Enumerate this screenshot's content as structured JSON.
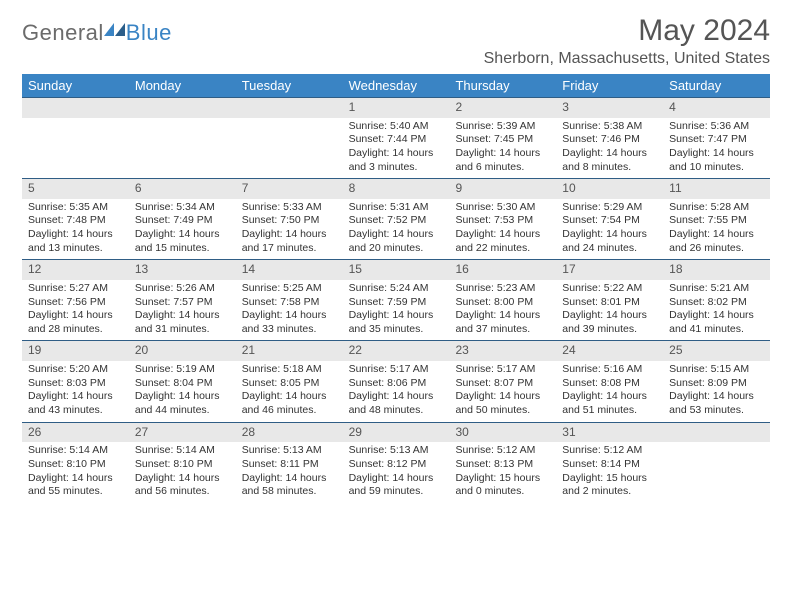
{
  "brand": {
    "name1": "General",
    "name2": "Blue",
    "brand_color": "#3a84c4",
    "gray": "#6b6b6b"
  },
  "title": "May 2024",
  "location": "Sherborn, Massachusetts, United States",
  "colors": {
    "header_bg": "#3a84c4",
    "header_text": "#ffffff",
    "daynum_bg": "#e8e8e8",
    "row_border": "#2f5d85",
    "body_text": "#333333"
  },
  "weekdays": [
    "Sunday",
    "Monday",
    "Tuesday",
    "Wednesday",
    "Thursday",
    "Friday",
    "Saturday"
  ],
  "weeks": [
    [
      {
        "day": "",
        "sunrise": "",
        "sunset": "",
        "daylight1": "",
        "daylight2": ""
      },
      {
        "day": "",
        "sunrise": "",
        "sunset": "",
        "daylight1": "",
        "daylight2": ""
      },
      {
        "day": "",
        "sunrise": "",
        "sunset": "",
        "daylight1": "",
        "daylight2": ""
      },
      {
        "day": "1",
        "sunrise": "Sunrise: 5:40 AM",
        "sunset": "Sunset: 7:44 PM",
        "daylight1": "Daylight: 14 hours",
        "daylight2": "and 3 minutes."
      },
      {
        "day": "2",
        "sunrise": "Sunrise: 5:39 AM",
        "sunset": "Sunset: 7:45 PM",
        "daylight1": "Daylight: 14 hours",
        "daylight2": "and 6 minutes."
      },
      {
        "day": "3",
        "sunrise": "Sunrise: 5:38 AM",
        "sunset": "Sunset: 7:46 PM",
        "daylight1": "Daylight: 14 hours",
        "daylight2": "and 8 minutes."
      },
      {
        "day": "4",
        "sunrise": "Sunrise: 5:36 AM",
        "sunset": "Sunset: 7:47 PM",
        "daylight1": "Daylight: 14 hours",
        "daylight2": "and 10 minutes."
      }
    ],
    [
      {
        "day": "5",
        "sunrise": "Sunrise: 5:35 AM",
        "sunset": "Sunset: 7:48 PM",
        "daylight1": "Daylight: 14 hours",
        "daylight2": "and 13 minutes."
      },
      {
        "day": "6",
        "sunrise": "Sunrise: 5:34 AM",
        "sunset": "Sunset: 7:49 PM",
        "daylight1": "Daylight: 14 hours",
        "daylight2": "and 15 minutes."
      },
      {
        "day": "7",
        "sunrise": "Sunrise: 5:33 AM",
        "sunset": "Sunset: 7:50 PM",
        "daylight1": "Daylight: 14 hours",
        "daylight2": "and 17 minutes."
      },
      {
        "day": "8",
        "sunrise": "Sunrise: 5:31 AM",
        "sunset": "Sunset: 7:52 PM",
        "daylight1": "Daylight: 14 hours",
        "daylight2": "and 20 minutes."
      },
      {
        "day": "9",
        "sunrise": "Sunrise: 5:30 AM",
        "sunset": "Sunset: 7:53 PM",
        "daylight1": "Daylight: 14 hours",
        "daylight2": "and 22 minutes."
      },
      {
        "day": "10",
        "sunrise": "Sunrise: 5:29 AM",
        "sunset": "Sunset: 7:54 PM",
        "daylight1": "Daylight: 14 hours",
        "daylight2": "and 24 minutes."
      },
      {
        "day": "11",
        "sunrise": "Sunrise: 5:28 AM",
        "sunset": "Sunset: 7:55 PM",
        "daylight1": "Daylight: 14 hours",
        "daylight2": "and 26 minutes."
      }
    ],
    [
      {
        "day": "12",
        "sunrise": "Sunrise: 5:27 AM",
        "sunset": "Sunset: 7:56 PM",
        "daylight1": "Daylight: 14 hours",
        "daylight2": "and 28 minutes."
      },
      {
        "day": "13",
        "sunrise": "Sunrise: 5:26 AM",
        "sunset": "Sunset: 7:57 PM",
        "daylight1": "Daylight: 14 hours",
        "daylight2": "and 31 minutes."
      },
      {
        "day": "14",
        "sunrise": "Sunrise: 5:25 AM",
        "sunset": "Sunset: 7:58 PM",
        "daylight1": "Daylight: 14 hours",
        "daylight2": "and 33 minutes."
      },
      {
        "day": "15",
        "sunrise": "Sunrise: 5:24 AM",
        "sunset": "Sunset: 7:59 PM",
        "daylight1": "Daylight: 14 hours",
        "daylight2": "and 35 minutes."
      },
      {
        "day": "16",
        "sunrise": "Sunrise: 5:23 AM",
        "sunset": "Sunset: 8:00 PM",
        "daylight1": "Daylight: 14 hours",
        "daylight2": "and 37 minutes."
      },
      {
        "day": "17",
        "sunrise": "Sunrise: 5:22 AM",
        "sunset": "Sunset: 8:01 PM",
        "daylight1": "Daylight: 14 hours",
        "daylight2": "and 39 minutes."
      },
      {
        "day": "18",
        "sunrise": "Sunrise: 5:21 AM",
        "sunset": "Sunset: 8:02 PM",
        "daylight1": "Daylight: 14 hours",
        "daylight2": "and 41 minutes."
      }
    ],
    [
      {
        "day": "19",
        "sunrise": "Sunrise: 5:20 AM",
        "sunset": "Sunset: 8:03 PM",
        "daylight1": "Daylight: 14 hours",
        "daylight2": "and 43 minutes."
      },
      {
        "day": "20",
        "sunrise": "Sunrise: 5:19 AM",
        "sunset": "Sunset: 8:04 PM",
        "daylight1": "Daylight: 14 hours",
        "daylight2": "and 44 minutes."
      },
      {
        "day": "21",
        "sunrise": "Sunrise: 5:18 AM",
        "sunset": "Sunset: 8:05 PM",
        "daylight1": "Daylight: 14 hours",
        "daylight2": "and 46 minutes."
      },
      {
        "day": "22",
        "sunrise": "Sunrise: 5:17 AM",
        "sunset": "Sunset: 8:06 PM",
        "daylight1": "Daylight: 14 hours",
        "daylight2": "and 48 minutes."
      },
      {
        "day": "23",
        "sunrise": "Sunrise: 5:17 AM",
        "sunset": "Sunset: 8:07 PM",
        "daylight1": "Daylight: 14 hours",
        "daylight2": "and 50 minutes."
      },
      {
        "day": "24",
        "sunrise": "Sunrise: 5:16 AM",
        "sunset": "Sunset: 8:08 PM",
        "daylight1": "Daylight: 14 hours",
        "daylight2": "and 51 minutes."
      },
      {
        "day": "25",
        "sunrise": "Sunrise: 5:15 AM",
        "sunset": "Sunset: 8:09 PM",
        "daylight1": "Daylight: 14 hours",
        "daylight2": "and 53 minutes."
      }
    ],
    [
      {
        "day": "26",
        "sunrise": "Sunrise: 5:14 AM",
        "sunset": "Sunset: 8:10 PM",
        "daylight1": "Daylight: 14 hours",
        "daylight2": "and 55 minutes."
      },
      {
        "day": "27",
        "sunrise": "Sunrise: 5:14 AM",
        "sunset": "Sunset: 8:10 PM",
        "daylight1": "Daylight: 14 hours",
        "daylight2": "and 56 minutes."
      },
      {
        "day": "28",
        "sunrise": "Sunrise: 5:13 AM",
        "sunset": "Sunset: 8:11 PM",
        "daylight1": "Daylight: 14 hours",
        "daylight2": "and 58 minutes."
      },
      {
        "day": "29",
        "sunrise": "Sunrise: 5:13 AM",
        "sunset": "Sunset: 8:12 PM",
        "daylight1": "Daylight: 14 hours",
        "daylight2": "and 59 minutes."
      },
      {
        "day": "30",
        "sunrise": "Sunrise: 5:12 AM",
        "sunset": "Sunset: 8:13 PM",
        "daylight1": "Daylight: 15 hours",
        "daylight2": "and 0 minutes."
      },
      {
        "day": "31",
        "sunrise": "Sunrise: 5:12 AM",
        "sunset": "Sunset: 8:14 PM",
        "daylight1": "Daylight: 15 hours",
        "daylight2": "and 2 minutes."
      },
      {
        "day": "",
        "sunrise": "",
        "sunset": "",
        "daylight1": "",
        "daylight2": ""
      }
    ]
  ]
}
